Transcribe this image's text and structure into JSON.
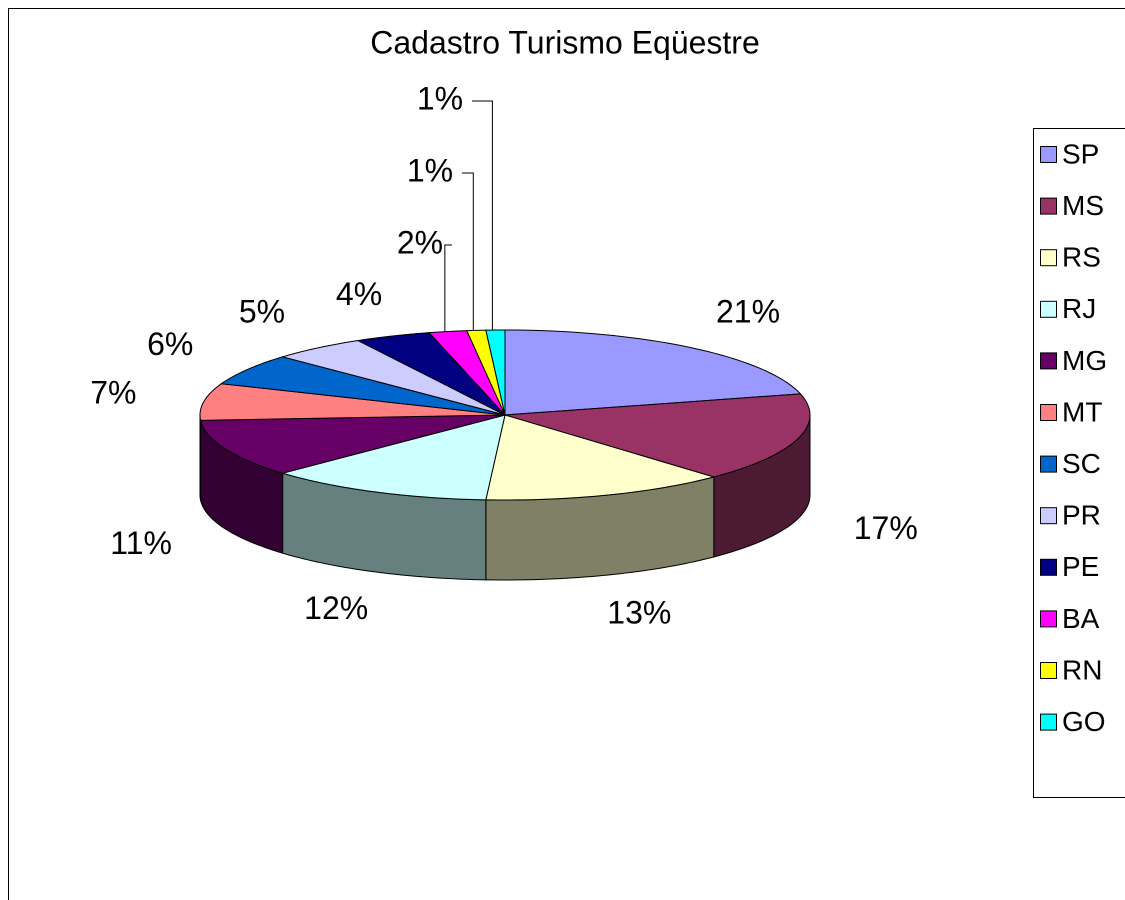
{
  "chart_data": {
    "type": "pie",
    "title": "Cadastro Turismo Eqüestre",
    "categories": [
      "SP",
      "MS",
      "RS",
      "RJ",
      "MG",
      "MT",
      "SC",
      "PR",
      "PE",
      "BA",
      "RN",
      "GO"
    ],
    "values": [
      21,
      17,
      13,
      12,
      11,
      7,
      6,
      5,
      4,
      2,
      1,
      1
    ],
    "value_labels": [
      "21%",
      "17%",
      "13%",
      "12%",
      "11%",
      "7%",
      "6%",
      "5%",
      "4%",
      "2%",
      "1%",
      "1%"
    ],
    "colors": [
      "#9999ff",
      "#993366",
      "#ffffcc",
      "#ccffff",
      "#660066",
      "#ff8080",
      "#0066cc",
      "#ccccff",
      "#000080",
      "#ff00ff",
      "#ffff00",
      "#00ffff"
    ],
    "legend": "right"
  }
}
